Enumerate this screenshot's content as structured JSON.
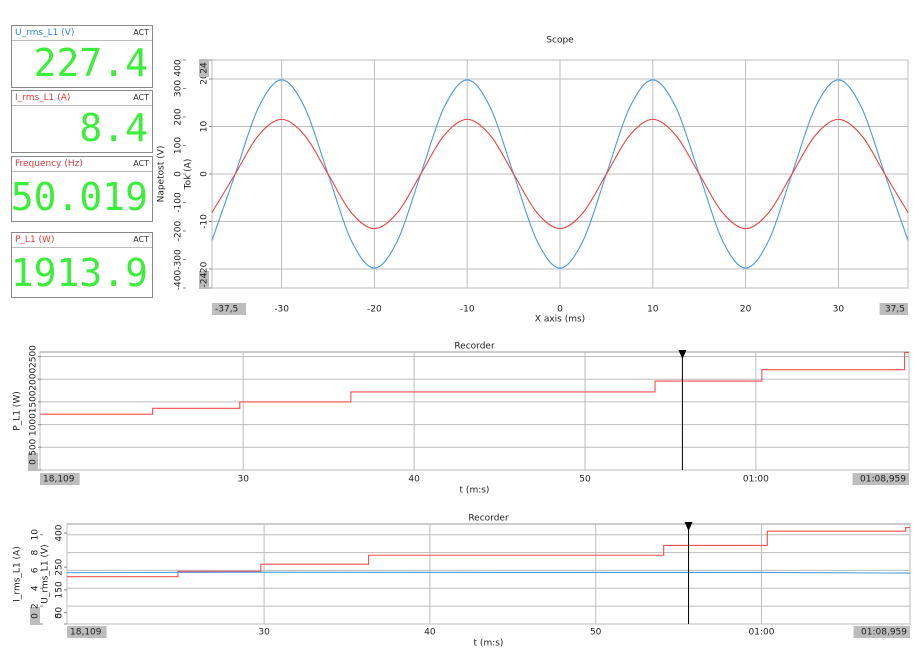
{
  "meters": [
    {
      "label": "U_rms_L1 (V)",
      "color": "#2f86d8",
      "status": "ACT",
      "value": "227.4"
    },
    {
      "label": "I_rms_L1 (A)",
      "color": "#e23b3b",
      "status": "ACT",
      "value": "8.4"
    },
    {
      "label": "Frequency (Hz)",
      "color": "#e23b3b",
      "status": "ACT",
      "value": "50.019"
    },
    {
      "label": "P_L1 (W)",
      "color": "#e23b3b",
      "status": "ACT",
      "value": "1913.9"
    }
  ],
  "chart_data": [
    {
      "type": "line",
      "title": "Scope",
      "x_label": "X axis (ms)",
      "y_label": "Napetost (V)",
      "y2_label": "Tok (A)",
      "smooth": true,
      "grid": "y2",
      "xlim": [
        -37.5,
        37.5
      ],
      "xticks": [
        {
          "value": -37.5,
          "label": "-37,5"
        },
        -30,
        -20,
        -10,
        0,
        10,
        20,
        30,
        {
          "value": 37.5,
          "label": "37,5"
        }
      ],
      "ylim": [
        -400,
        400
      ],
      "yticks": [
        -400,
        -300,
        -200,
        -100,
        0,
        100,
        200,
        300,
        400
      ],
      "y2lim": [
        -24,
        24
      ],
      "y2ticks": [
        -24,
        -20,
        -10,
        0,
        10,
        20,
        24
      ],
      "x": [
        -37.5,
        -35,
        -32.5,
        -30,
        -27.5,
        -25,
        -22.5,
        -20,
        -17.5,
        -15,
        -12.5,
        -10,
        -7.5,
        -5,
        -2.5,
        0,
        2.5,
        5,
        7.5,
        10,
        12.5,
        15,
        17.5,
        20,
        22.5,
        25,
        27.5,
        30,
        32.5,
        35,
        37.5
      ],
      "series": [
        {
          "color": "#4a9be0",
          "values": [
            -233,
            0,
            233,
            330,
            233,
            0,
            -233,
            -330,
            -233,
            0,
            233,
            330,
            233,
            0,
            -233,
            -330,
            -233,
            0,
            233,
            330,
            233,
            0,
            -233,
            -330,
            -233,
            0,
            233,
            330,
            233,
            0,
            -233
          ]
        },
        {
          "color": "#e8463e",
          "axis": "y2",
          "values": [
            -8.1,
            0,
            8.1,
            11.5,
            8.1,
            0,
            -8.1,
            -11.5,
            -8.1,
            0,
            8.1,
            11.5,
            8.1,
            0,
            -8.1,
            -11.5,
            -8.1,
            0,
            8.1,
            11.5,
            8.1,
            0,
            -8.1,
            -11.5,
            -8.1,
            0,
            8.1,
            11.5,
            8.1,
            0,
            -8.1
          ]
        }
      ]
    },
    {
      "type": "line",
      "title": "Recorder",
      "x_label": "t (m:s)",
      "y_label": "P_L1 (W)",
      "grid": "y",
      "xlim": [
        18.109,
        68.959
      ],
      "xticks": [
        {
          "value": 18.109,
          "label": "18,109"
        },
        30,
        40,
        50,
        {
          "value": 60,
          "label": "01:00"
        },
        {
          "value": 68.959,
          "label": "01:08,959"
        }
      ],
      "ylim": [
        0,
        2600
      ],
      "yticks": [
        0,
        500,
        1000,
        1500,
        2000,
        2500
      ],
      "cursor": 55.7,
      "series": [
        {
          "color": "#f05050",
          "x": [
            18.109,
            24.7,
            24.7,
            29.8,
            29.8,
            36.3,
            36.3,
            54.1,
            54.1,
            60.35,
            60.35,
            68.7,
            68.7,
            68.959
          ],
          "values": [
            1230,
            1230,
            1360,
            1360,
            1500,
            1500,
            1720,
            1720,
            1960,
            1960,
            2210,
            2210,
            2590,
            2590
          ]
        }
      ]
    },
    {
      "type": "line",
      "title": "Recorder",
      "x_label": "t (m:s)",
      "y_label": "I_rms_L1 (A)",
      "y2_label": "U_rms_L1 (V)",
      "grid": "y",
      "xlim": [
        18.109,
        68.959
      ],
      "xticks": [
        {
          "value": 18.109,
          "label": "18,109"
        },
        30,
        40,
        50,
        {
          "value": 60,
          "label": "01:00"
        },
        {
          "value": 68.959,
          "label": "01:08,959"
        }
      ],
      "ylim": [
        0,
        11.2
      ],
      "yticks": [
        0,
        2,
        4,
        6,
        8,
        10
      ],
      "y2lim": [
        0,
        440
      ],
      "y2ticks": [
        0,
        50,
        150,
        250,
        400
      ],
      "cursor": 55.6,
      "series": [
        {
          "color": "#f05050",
          "x": [
            18.109,
            24.8,
            24.8,
            29.8,
            29.8,
            36.3,
            36.3,
            54.1,
            54.1,
            60.35,
            60.35,
            68.7,
            68.7,
            68.959
          ],
          "values": [
            5.3,
            5.3,
            5.9,
            5.9,
            6.7,
            6.7,
            7.7,
            7.7,
            8.8,
            8.8,
            10.4,
            10.4,
            10.8,
            10.8
          ]
        },
        {
          "color": "#4a9be0",
          "axis": "y2",
          "x": [
            18.109,
            30,
            45,
            60,
            68.959
          ],
          "values": [
            226,
            228,
            227,
            227,
            224
          ]
        }
      ]
    }
  ]
}
